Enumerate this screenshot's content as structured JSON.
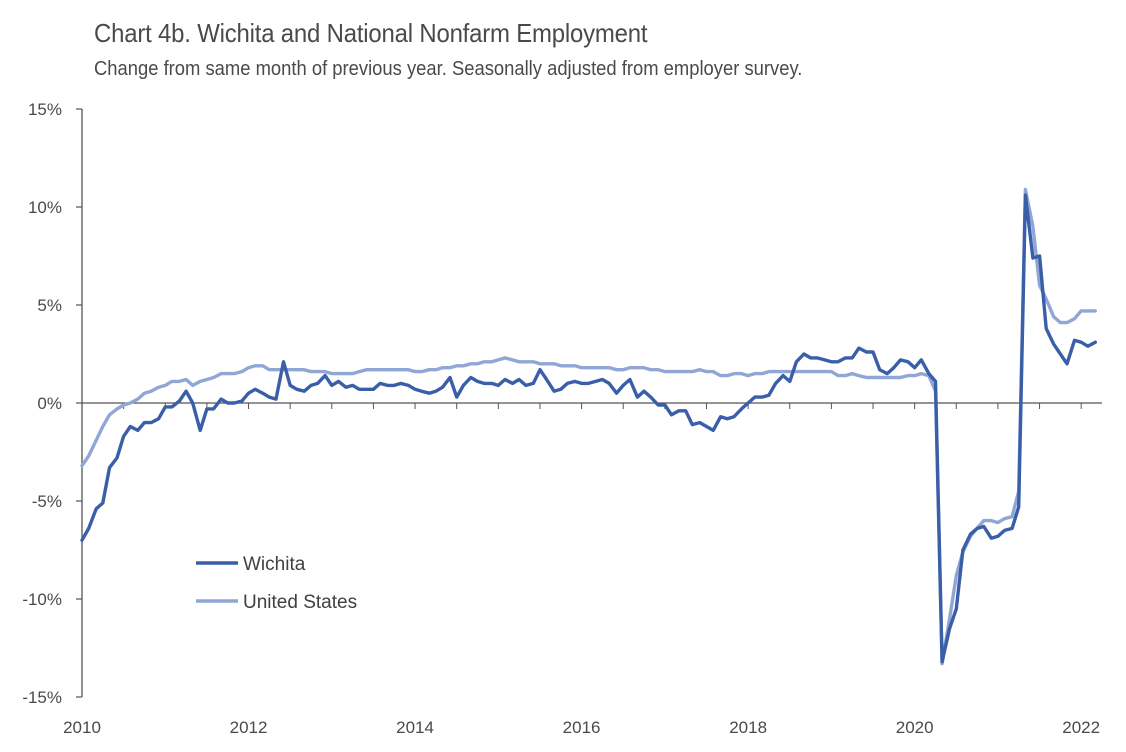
{
  "chart_data": {
    "type": "line",
    "title": "Chart 4b. Wichita and National Nonfarm Employment",
    "subtitle": "Change from same month of previous year. Seasonally adjusted from employer survey.",
    "xlabel": "",
    "ylabel": "",
    "x_ticks": [
      "2010",
      "2012",
      "2014",
      "2016",
      "2018",
      "2020",
      "2022"
    ],
    "y_ticks": [
      "15%",
      "10%",
      "5%",
      "0%",
      "-5%",
      "-10%",
      "-15%"
    ],
    "ylim": [
      -15,
      15
    ],
    "xlim": [
      2010.0,
      2022.25
    ],
    "grid": false,
    "legend_position": "lower-left",
    "series": [
      {
        "name": "Wichita",
        "color": "#3a5ea8",
        "points": [
          [
            2010.0,
            -7.0
          ],
          [
            2010.08,
            -6.4
          ],
          [
            2010.17,
            -5.4
          ],
          [
            2010.25,
            -5.1
          ],
          [
            2010.33,
            -3.3
          ],
          [
            2010.42,
            -2.8
          ],
          [
            2010.5,
            -1.7
          ],
          [
            2010.58,
            -1.2
          ],
          [
            2010.67,
            -1.4
          ],
          [
            2010.75,
            -1.0
          ],
          [
            2010.83,
            -1.0
          ],
          [
            2010.92,
            -0.8
          ],
          [
            2011.0,
            -0.2
          ],
          [
            2011.08,
            -0.2
          ],
          [
            2011.17,
            0.1
          ],
          [
            2011.25,
            0.6
          ],
          [
            2011.33,
            0.0
          ],
          [
            2011.42,
            -1.4
          ],
          [
            2011.5,
            -0.3
          ],
          [
            2011.58,
            -0.3
          ],
          [
            2011.67,
            0.2
          ],
          [
            2011.75,
            0.0
          ],
          [
            2011.83,
            0.0
          ],
          [
            2011.92,
            0.1
          ],
          [
            2012.0,
            0.5
          ],
          [
            2012.08,
            0.7
          ],
          [
            2012.17,
            0.5
          ],
          [
            2012.25,
            0.3
          ],
          [
            2012.33,
            0.2
          ],
          [
            2012.42,
            2.1
          ],
          [
            2012.5,
            0.9
          ],
          [
            2012.58,
            0.7
          ],
          [
            2012.67,
            0.6
          ],
          [
            2012.75,
            0.9
          ],
          [
            2012.83,
            1.0
          ],
          [
            2012.92,
            1.4
          ],
          [
            2013.0,
            0.9
          ],
          [
            2013.08,
            1.1
          ],
          [
            2013.17,
            0.8
          ],
          [
            2013.25,
            0.9
          ],
          [
            2013.33,
            0.7
          ],
          [
            2013.42,
            0.7
          ],
          [
            2013.5,
            0.7
          ],
          [
            2013.58,
            1.0
          ],
          [
            2013.67,
            0.9
          ],
          [
            2013.75,
            0.9
          ],
          [
            2013.83,
            1.0
          ],
          [
            2013.92,
            0.9
          ],
          [
            2014.0,
            0.7
          ],
          [
            2014.08,
            0.6
          ],
          [
            2014.17,
            0.5
          ],
          [
            2014.25,
            0.6
          ],
          [
            2014.33,
            0.8
          ],
          [
            2014.42,
            1.3
          ],
          [
            2014.5,
            0.3
          ],
          [
            2014.58,
            0.9
          ],
          [
            2014.67,
            1.3
          ],
          [
            2014.75,
            1.1
          ],
          [
            2014.83,
            1.0
          ],
          [
            2014.92,
            1.0
          ],
          [
            2015.0,
            0.9
          ],
          [
            2015.08,
            1.2
          ],
          [
            2015.17,
            1.0
          ],
          [
            2015.25,
            1.2
          ],
          [
            2015.33,
            0.9
          ],
          [
            2015.42,
            1.0
          ],
          [
            2015.5,
            1.7
          ],
          [
            2015.58,
            1.2
          ],
          [
            2015.67,
            0.6
          ],
          [
            2015.75,
            0.7
          ],
          [
            2015.83,
            1.0
          ],
          [
            2015.92,
            1.1
          ],
          [
            2016.0,
            1.0
          ],
          [
            2016.08,
            1.0
          ],
          [
            2016.17,
            1.1
          ],
          [
            2016.25,
            1.2
          ],
          [
            2016.33,
            1.0
          ],
          [
            2016.42,
            0.5
          ],
          [
            2016.5,
            0.9
          ],
          [
            2016.58,
            1.2
          ],
          [
            2016.67,
            0.3
          ],
          [
            2016.75,
            0.6
          ],
          [
            2016.83,
            0.3
          ],
          [
            2016.92,
            -0.1
          ],
          [
            2017.0,
            -0.1
          ],
          [
            2017.08,
            -0.6
          ],
          [
            2017.17,
            -0.4
          ],
          [
            2017.25,
            -0.4
          ],
          [
            2017.33,
            -1.1
          ],
          [
            2017.42,
            -1.0
          ],
          [
            2017.5,
            -1.2
          ],
          [
            2017.58,
            -1.4
          ],
          [
            2017.67,
            -0.7
          ],
          [
            2017.75,
            -0.8
          ],
          [
            2017.83,
            -0.7
          ],
          [
            2017.92,
            -0.3
          ],
          [
            2018.0,
            0.0
          ],
          [
            2018.08,
            0.3
          ],
          [
            2018.17,
            0.3
          ],
          [
            2018.25,
            0.4
          ],
          [
            2018.33,
            1.0
          ],
          [
            2018.42,
            1.4
          ],
          [
            2018.5,
            1.1
          ],
          [
            2018.58,
            2.1
          ],
          [
            2018.67,
            2.5
          ],
          [
            2018.75,
            2.3
          ],
          [
            2018.83,
            2.3
          ],
          [
            2018.92,
            2.2
          ],
          [
            2019.0,
            2.1
          ],
          [
            2019.08,
            2.1
          ],
          [
            2019.17,
            2.3
          ],
          [
            2019.25,
            2.3
          ],
          [
            2019.33,
            2.8
          ],
          [
            2019.42,
            2.6
          ],
          [
            2019.5,
            2.6
          ],
          [
            2019.58,
            1.7
          ],
          [
            2019.67,
            1.5
          ],
          [
            2019.75,
            1.8
          ],
          [
            2019.83,
            2.2
          ],
          [
            2019.92,
            2.1
          ],
          [
            2020.0,
            1.8
          ],
          [
            2020.08,
            2.2
          ],
          [
            2020.17,
            1.5
          ],
          [
            2020.25,
            1.1
          ],
          [
            2020.33,
            -13.2
          ],
          [
            2020.42,
            -11.5
          ],
          [
            2020.5,
            -10.5
          ],
          [
            2020.58,
            -7.5
          ],
          [
            2020.67,
            -6.7
          ],
          [
            2020.75,
            -6.4
          ],
          [
            2020.83,
            -6.3
          ],
          [
            2020.92,
            -6.9
          ],
          [
            2021.0,
            -6.8
          ],
          [
            2021.08,
            -6.5
          ],
          [
            2021.17,
            -6.4
          ],
          [
            2021.25,
            -5.3
          ],
          [
            2021.33,
            10.6
          ],
          [
            2021.42,
            7.4
          ],
          [
            2021.5,
            7.5
          ],
          [
            2021.58,
            3.8
          ],
          [
            2021.67,
            3.0
          ],
          [
            2021.75,
            2.5
          ],
          [
            2021.83,
            2.0
          ],
          [
            2021.92,
            3.2
          ],
          [
            2022.0,
            3.1
          ],
          [
            2022.08,
            2.9
          ],
          [
            2022.17,
            3.1
          ]
        ]
      },
      {
        "name": "United States",
        "color": "#8fa6d6",
        "points": [
          [
            2010.0,
            -3.2
          ],
          [
            2010.08,
            -2.7
          ],
          [
            2010.17,
            -1.9
          ],
          [
            2010.25,
            -1.2
          ],
          [
            2010.33,
            -0.6
          ],
          [
            2010.42,
            -0.3
          ],
          [
            2010.5,
            -0.1
          ],
          [
            2010.58,
            0.0
          ],
          [
            2010.67,
            0.2
          ],
          [
            2010.75,
            0.5
          ],
          [
            2010.83,
            0.6
          ],
          [
            2010.92,
            0.8
          ],
          [
            2011.0,
            0.9
          ],
          [
            2011.08,
            1.1
          ],
          [
            2011.17,
            1.1
          ],
          [
            2011.25,
            1.2
          ],
          [
            2011.33,
            0.9
          ],
          [
            2011.42,
            1.1
          ],
          [
            2011.5,
            1.2
          ],
          [
            2011.58,
            1.3
          ],
          [
            2011.67,
            1.5
          ],
          [
            2011.75,
            1.5
          ],
          [
            2011.83,
            1.5
          ],
          [
            2011.92,
            1.6
          ],
          [
            2012.0,
            1.8
          ],
          [
            2012.08,
            1.9
          ],
          [
            2012.17,
            1.9
          ],
          [
            2012.25,
            1.7
          ],
          [
            2012.33,
            1.7
          ],
          [
            2012.42,
            1.7
          ],
          [
            2012.5,
            1.7
          ],
          [
            2012.58,
            1.7
          ],
          [
            2012.67,
            1.7
          ],
          [
            2012.75,
            1.6
          ],
          [
            2012.83,
            1.6
          ],
          [
            2012.92,
            1.6
          ],
          [
            2013.0,
            1.5
          ],
          [
            2013.08,
            1.5
          ],
          [
            2013.17,
            1.5
          ],
          [
            2013.25,
            1.5
          ],
          [
            2013.33,
            1.6
          ],
          [
            2013.42,
            1.7
          ],
          [
            2013.5,
            1.7
          ],
          [
            2013.58,
            1.7
          ],
          [
            2013.67,
            1.7
          ],
          [
            2013.75,
            1.7
          ],
          [
            2013.83,
            1.7
          ],
          [
            2013.92,
            1.7
          ],
          [
            2014.0,
            1.6
          ],
          [
            2014.08,
            1.6
          ],
          [
            2014.17,
            1.7
          ],
          [
            2014.25,
            1.7
          ],
          [
            2014.33,
            1.8
          ],
          [
            2014.42,
            1.8
          ],
          [
            2014.5,
            1.9
          ],
          [
            2014.58,
            1.9
          ],
          [
            2014.67,
            2.0
          ],
          [
            2014.75,
            2.0
          ],
          [
            2014.83,
            2.1
          ],
          [
            2014.92,
            2.1
          ],
          [
            2015.0,
            2.2
          ],
          [
            2015.08,
            2.3
          ],
          [
            2015.17,
            2.2
          ],
          [
            2015.25,
            2.1
          ],
          [
            2015.33,
            2.1
          ],
          [
            2015.42,
            2.1
          ],
          [
            2015.5,
            2.0
          ],
          [
            2015.58,
            2.0
          ],
          [
            2015.67,
            2.0
          ],
          [
            2015.75,
            1.9
          ],
          [
            2015.83,
            1.9
          ],
          [
            2015.92,
            1.9
          ],
          [
            2016.0,
            1.8
          ],
          [
            2016.08,
            1.8
          ],
          [
            2016.17,
            1.8
          ],
          [
            2016.25,
            1.8
          ],
          [
            2016.33,
            1.8
          ],
          [
            2016.42,
            1.7
          ],
          [
            2016.5,
            1.7
          ],
          [
            2016.58,
            1.8
          ],
          [
            2016.67,
            1.8
          ],
          [
            2016.75,
            1.8
          ],
          [
            2016.83,
            1.7
          ],
          [
            2016.92,
            1.7
          ],
          [
            2017.0,
            1.6
          ],
          [
            2017.08,
            1.6
          ],
          [
            2017.17,
            1.6
          ],
          [
            2017.25,
            1.6
          ],
          [
            2017.33,
            1.6
          ],
          [
            2017.42,
            1.7
          ],
          [
            2017.5,
            1.6
          ],
          [
            2017.58,
            1.6
          ],
          [
            2017.67,
            1.4
          ],
          [
            2017.75,
            1.4
          ],
          [
            2017.83,
            1.5
          ],
          [
            2017.92,
            1.5
          ],
          [
            2018.0,
            1.4
          ],
          [
            2018.08,
            1.5
          ],
          [
            2018.17,
            1.5
          ],
          [
            2018.25,
            1.6
          ],
          [
            2018.33,
            1.6
          ],
          [
            2018.42,
            1.6
          ],
          [
            2018.5,
            1.6
          ],
          [
            2018.58,
            1.6
          ],
          [
            2018.67,
            1.6
          ],
          [
            2018.75,
            1.6
          ],
          [
            2018.83,
            1.6
          ],
          [
            2018.92,
            1.6
          ],
          [
            2019.0,
            1.6
          ],
          [
            2019.08,
            1.4
          ],
          [
            2019.17,
            1.4
          ],
          [
            2019.25,
            1.5
          ],
          [
            2019.33,
            1.4
          ],
          [
            2019.42,
            1.3
          ],
          [
            2019.5,
            1.3
          ],
          [
            2019.58,
            1.3
          ],
          [
            2019.67,
            1.3
          ],
          [
            2019.75,
            1.3
          ],
          [
            2019.83,
            1.3
          ],
          [
            2019.92,
            1.4
          ],
          [
            2020.0,
            1.4
          ],
          [
            2020.08,
            1.5
          ],
          [
            2020.17,
            1.4
          ],
          [
            2020.25,
            0.6
          ],
          [
            2020.33,
            -13.3
          ],
          [
            2020.42,
            -11.0
          ],
          [
            2020.5,
            -8.8
          ],
          [
            2020.58,
            -7.6
          ],
          [
            2020.67,
            -6.8
          ],
          [
            2020.75,
            -6.4
          ],
          [
            2020.83,
            -6.0
          ],
          [
            2020.92,
            -6.0
          ],
          [
            2021.0,
            -6.1
          ],
          [
            2021.08,
            -5.9
          ],
          [
            2021.17,
            -5.8
          ],
          [
            2021.25,
            -4.5
          ],
          [
            2021.33,
            10.9
          ],
          [
            2021.42,
            9.0
          ],
          [
            2021.5,
            6.0
          ],
          [
            2021.58,
            5.3
          ],
          [
            2021.67,
            4.4
          ],
          [
            2021.75,
            4.1
          ],
          [
            2021.83,
            4.1
          ],
          [
            2021.92,
            4.3
          ],
          [
            2022.0,
            4.7
          ],
          [
            2022.08,
            4.7
          ],
          [
            2022.17,
            4.7
          ]
        ]
      }
    ]
  }
}
